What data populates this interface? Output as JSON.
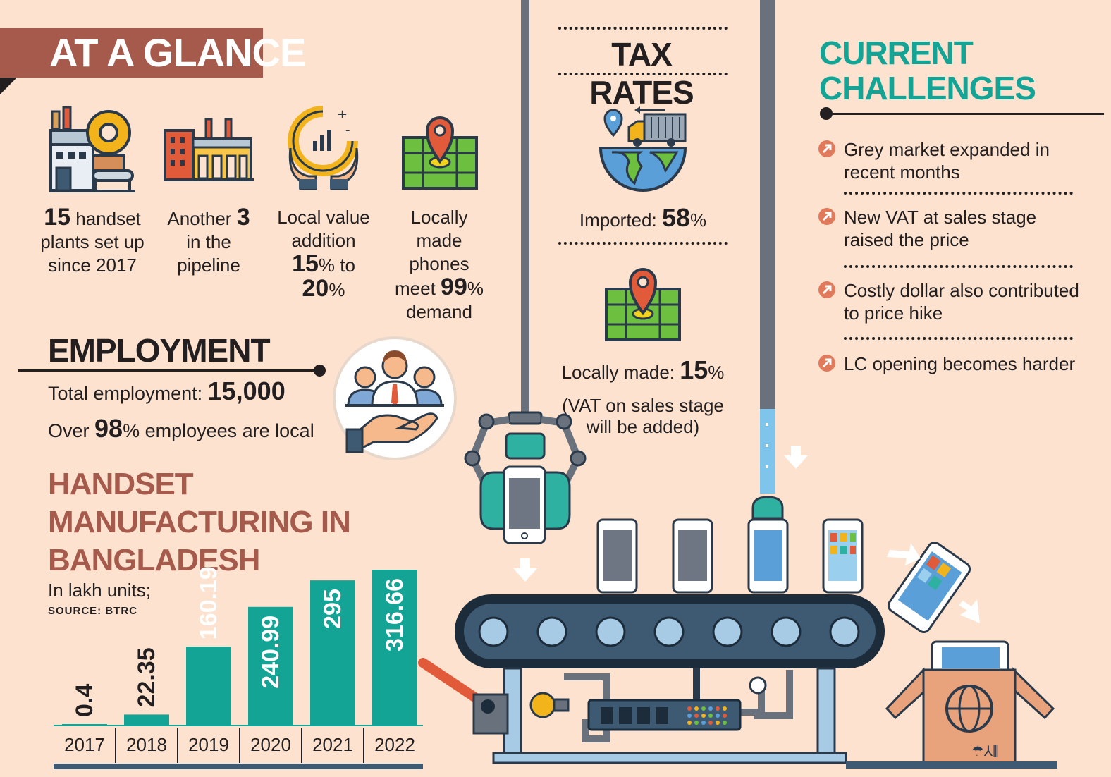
{
  "at_a_glance": {
    "title": "AT A GLANCE",
    "stats": [
      {
        "prefix": "",
        "value": "15",
        "text": " handset plants set up since 2017",
        "icon": "factory-gear-icon"
      },
      {
        "prefix": "Another ",
        "value": "3",
        "text": " in the pipeline",
        "icon": "factory-icon"
      },
      {
        "prefix": "Local value addition ",
        "value": "15",
        "mid": "% to ",
        "value2": "20",
        "suffix": "%",
        "icon": "growth-chart-hands-icon"
      },
      {
        "prefix": "Locally made phones meet ",
        "value": "99",
        "suffix": "% demand",
        "icon": "map-pin-icon"
      }
    ]
  },
  "employment": {
    "title": "EMPLOYMENT",
    "total_label": "Total employment: ",
    "total_value": "15,000",
    "local_prefix": "Over ",
    "local_value": "98",
    "local_suffix": "% employees are local",
    "icon": "employees-hand-icon"
  },
  "handset": {
    "title_lines": [
      "HANDSET",
      "MANUFACTURING IN",
      "BANGLADESH"
    ],
    "unit_note": "In lakh units;",
    "source": "SOURCE: BTRC"
  },
  "chart_data": {
    "type": "bar",
    "categories": [
      "2017",
      "2018",
      "2019",
      "2020",
      "2021",
      "2022"
    ],
    "values": [
      0.4,
      22.35,
      160.19,
      240.99,
      295,
      316.66
    ],
    "value_labels": [
      "0.4",
      "22.35",
      "160.19",
      "240.99",
      "295",
      "316.66"
    ],
    "title": "HANDSET MANUFACTURING IN BANGLADESH",
    "ylabel": "In lakh units",
    "ylim": [
      0,
      316.66
    ],
    "bar_color": "#14a496"
  },
  "tax_rates": {
    "title": "TAX RATES",
    "imported_label": "Imported: ",
    "imported_value": "58",
    "imported_suffix": "%",
    "local_label": "Locally made: ",
    "local_value": "15",
    "local_suffix": "%",
    "local_note_1": "(VAT on sales stage",
    "local_note_2": "will be added)",
    "icons": [
      "globe-truck-icon",
      "map-pin-icon"
    ]
  },
  "challenges": {
    "title_lines": [
      "CURRENT",
      "CHALLENGES"
    ],
    "items": [
      "Grey market expanded in recent months",
      "New VAT at sales stage raised the price",
      "Costly dollar also contributed to price hike",
      "LC opening becomes harder"
    ]
  },
  "colors": {
    "background": "#fde3cf",
    "banner": "#a55a4c",
    "teal": "#14a496",
    "dark": "#231f20"
  }
}
